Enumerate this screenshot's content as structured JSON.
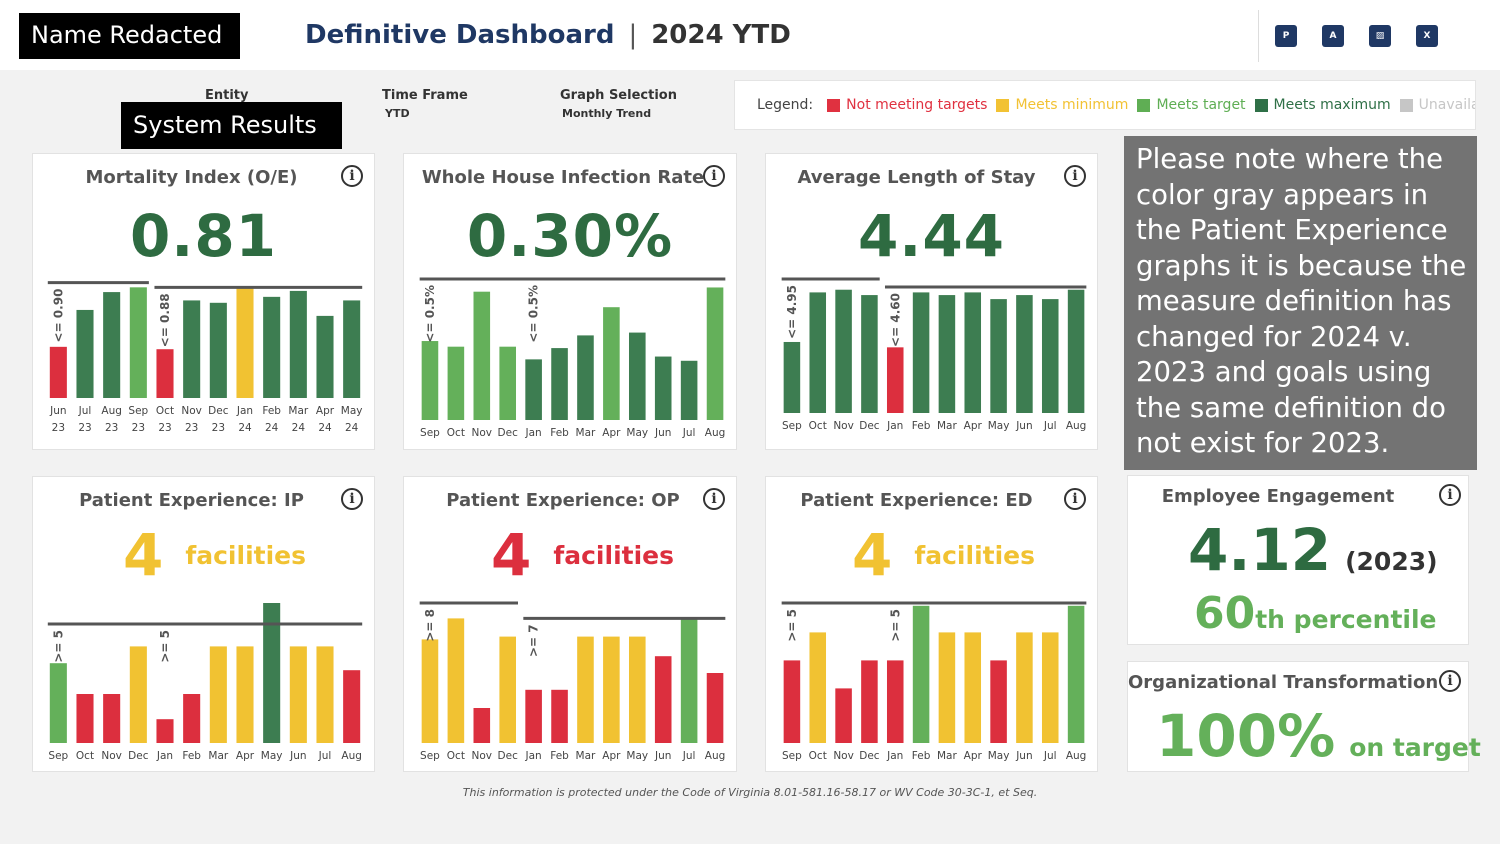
{
  "header": {
    "name_redacted": "Name Redacted",
    "title": "Definitive Dashboard",
    "separator": "|",
    "period": "2024 YTD"
  },
  "toolbar": {
    "icons": [
      {
        "name": "powerpoint-icon",
        "label": "P"
      },
      {
        "name": "pdf-icon",
        "label": "A"
      },
      {
        "name": "image-icon",
        "label": "▨"
      },
      {
        "name": "excel-icon",
        "label": "X"
      }
    ]
  },
  "filters": {
    "entity_label": "Entity",
    "entity_value": "System Results",
    "timeframe_label": "Time Frame",
    "timeframe_value": "YTD",
    "graph_label": "Graph Selection",
    "graph_value": "Monthly Trend"
  },
  "legend": {
    "title": "Legend:",
    "items": [
      {
        "label": "Not meeting targets",
        "color": "#e03140"
      },
      {
        "label": "Meets minimum",
        "color": "#f2c234"
      },
      {
        "label": "Meets target",
        "color": "#5fae54"
      },
      {
        "label": "Meets maximum",
        "color": "#2f7047"
      },
      {
        "label": "Unavaila..",
        "color": "#c6c6c6"
      }
    ]
  },
  "colors": {
    "r": "#dc2f3e",
    "y": "#f1c232",
    "g": "#64b05a",
    "d": "#3d7d51"
  },
  "cards": {
    "mortality": {
      "title": "Mortality Index (O/E)",
      "value": "0.81"
    },
    "infection": {
      "title": "Whole House Infection Rate",
      "value": "0.30%"
    },
    "los": {
      "title": "Average Length of Stay",
      "value": "4.44"
    },
    "pe_ip": {
      "title": "Patient Experience: IP",
      "count": "4",
      "unit": "facilities",
      "color": "#f1c232"
    },
    "pe_op": {
      "title": "Patient Experience: OP",
      "count": "4",
      "unit": "facilities",
      "color": "#dc2f3e"
    },
    "pe_ed": {
      "title": "Patient Experience: ED",
      "count": "4",
      "unit": "facilities",
      "color": "#f1c232"
    },
    "employee": {
      "title": "Employee Engagement",
      "value": "4.12",
      "year": "(2023)",
      "pct": "60",
      "suffix": "th percentile"
    },
    "org": {
      "title": "Organizational Transformation",
      "value": "100%",
      "suffix": "on target"
    }
  },
  "note": "Please note where the color gray appears in the Patient Experience graphs it is because the measure definition has changed for 2024 v. 2023 and goals using the same definition do not exist for 2023.",
  "footer": "This information is protected under the Code of Virginia 8.01-581.16-58.17 or WV Code 30-3C-1, et Seq.",
  "chart_data": [
    {
      "type": "bar",
      "name": "mortality",
      "ylim": [
        0,
        1
      ],
      "categories": [
        "Jun 23",
        "Jul 23",
        "Aug 23",
        "Sep 23",
        "Oct 23",
        "Nov 23",
        "Dec 23",
        "Jan 24",
        "Feb 24",
        "Mar 24",
        "Apr 24",
        "May 24"
      ],
      "values": [
        0.43,
        0.74,
        0.89,
        0.93,
        0.41,
        0.82,
        0.8,
        0.92,
        0.85,
        0.9,
        0.69,
        0.82
      ],
      "status": [
        "r",
        "d",
        "d",
        "g",
        "r",
        "d",
        "d",
        "y",
        "d",
        "d",
        "d",
        "d"
      ],
      "goals": [
        {
          "from": 0,
          "to": 3,
          "v": 0.97
        },
        {
          "from": 4,
          "to": 11,
          "v": 0.93
        }
      ],
      "goal_labels": [
        {
          "bar": 0,
          "text": "<= 0.90"
        },
        {
          "bar": 4,
          "text": "<= 0.88"
        }
      ]
    },
    {
      "type": "bar",
      "name": "infection",
      "ylim": [
        0,
        1
      ],
      "categories": [
        "Sep",
        "Oct",
        "Nov",
        "Dec",
        "Jan",
        "Feb",
        "Mar",
        "Apr",
        "May",
        "Jun",
        "Jul",
        "Aug"
      ],
      "values": [
        0.56,
        0.52,
        0.91,
        0.52,
        0.43,
        0.51,
        0.6,
        0.8,
        0.62,
        0.45,
        0.42,
        0.94
      ],
      "status": [
        "g",
        "g",
        "g",
        "g",
        "d",
        "d",
        "d",
        "g",
        "d",
        "d",
        "d",
        "g"
      ],
      "goals": [
        {
          "from": 0,
          "to": 11,
          "v": 1.0
        }
      ],
      "goal_labels": [
        {
          "bar": 0,
          "text": "<= 0.5%"
        },
        {
          "bar": 4,
          "text": "<= 0.5%"
        }
      ]
    },
    {
      "type": "bar",
      "name": "los",
      "ylim": [
        0,
        1
      ],
      "categories": [
        "Sep",
        "Oct",
        "Nov",
        "Dec",
        "Jan",
        "Feb",
        "Mar",
        "Apr",
        "May",
        "Jun",
        "Jul",
        "Aug"
      ],
      "values": [
        0.53,
        0.9,
        0.92,
        0.88,
        0.49,
        0.9,
        0.88,
        0.9,
        0.85,
        0.88,
        0.85,
        0.92
      ],
      "status": [
        "d",
        "d",
        "d",
        "d",
        "r",
        "d",
        "d",
        "d",
        "d",
        "d",
        "d",
        "d"
      ],
      "goals": [
        {
          "from": 0,
          "to": 3,
          "v": 1.0
        },
        {
          "from": 4,
          "to": 11,
          "v": 0.94
        }
      ],
      "goal_labels": [
        {
          "bar": 0,
          "text": "<= 4.95"
        },
        {
          "bar": 4,
          "text": "<= 4.60"
        }
      ]
    },
    {
      "type": "bar",
      "name": "pe_ip",
      "ylim": [
        0,
        1
      ],
      "categories": [
        "Sep",
        "Oct",
        "Nov",
        "Dec",
        "Jan",
        "Feb",
        "Mar",
        "Apr",
        "May",
        "Jun",
        "Jul",
        "Aug"
      ],
      "values": [
        0.57,
        0.35,
        0.35,
        0.69,
        0.17,
        0.35,
        0.69,
        0.69,
        1.0,
        0.69,
        0.69,
        0.52
      ],
      "status": [
        "g",
        "r",
        "r",
        "y",
        "r",
        "r",
        "y",
        "y",
        "d",
        "y",
        "y",
        "r"
      ],
      "goals": [
        {
          "from": 0,
          "to": 11,
          "v": 0.85
        }
      ],
      "goal_labels": [
        {
          "bar": 0,
          "text": ">= 5"
        },
        {
          "bar": 4,
          "text": ">= 5"
        }
      ]
    },
    {
      "type": "bar",
      "name": "pe_op",
      "ylim": [
        0,
        1
      ],
      "categories": [
        "Sep",
        "Oct",
        "Nov",
        "Dec",
        "Jan",
        "Feb",
        "Mar",
        "Apr",
        "May",
        "Jun",
        "Jul",
        "Aug"
      ],
      "values": [
        0.74,
        0.89,
        0.25,
        0.76,
        0.38,
        0.38,
        0.76,
        0.76,
        0.76,
        0.62,
        0.89,
        0.5
      ],
      "status": [
        "y",
        "y",
        "r",
        "y",
        "r",
        "r",
        "y",
        "y",
        "y",
        "r",
        "g",
        "r"
      ],
      "goals": [
        {
          "from": 0,
          "to": 3,
          "v": 1.0
        },
        {
          "from": 4,
          "to": 11,
          "v": 0.89
        }
      ],
      "goal_labels": [
        {
          "bar": 0,
          "text": ">= 8"
        },
        {
          "bar": 4,
          "text": ">= 7"
        }
      ]
    },
    {
      "type": "bar",
      "name": "pe_ed",
      "ylim": [
        0,
        1
      ],
      "categories": [
        "Sep",
        "Oct",
        "Nov",
        "Dec",
        "Jan",
        "Feb",
        "Mar",
        "Apr",
        "May",
        "Jun",
        "Jul",
        "Aug"
      ],
      "values": [
        0.59,
        0.79,
        0.39,
        0.59,
        0.59,
        0.98,
        0.79,
        0.79,
        0.59,
        0.79,
        0.79,
        0.98
      ],
      "status": [
        "r",
        "y",
        "r",
        "r",
        "r",
        "g",
        "y",
        "y",
        "r",
        "y",
        "y",
        "g"
      ],
      "goals": [
        {
          "from": 0,
          "to": 11,
          "v": 1.0
        }
      ],
      "goal_labels": [
        {
          "bar": 0,
          "text": ">= 5"
        },
        {
          "bar": 4,
          "text": ">= 5"
        }
      ]
    }
  ]
}
